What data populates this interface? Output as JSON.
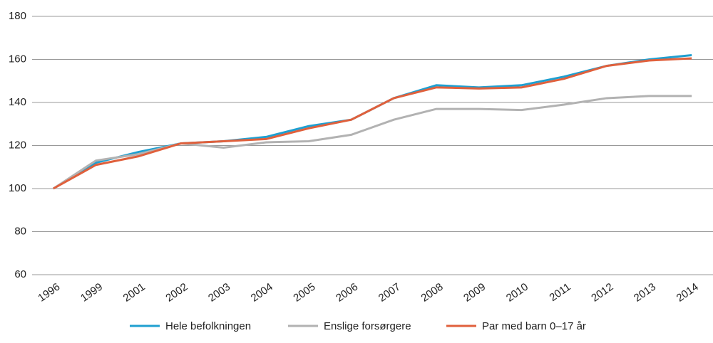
{
  "chart_data": {
    "type": "line",
    "categories": [
      "1996",
      "1999",
      "2001",
      "2002",
      "2003",
      "2004",
      "2005",
      "2006",
      "2007",
      "2008",
      "2009",
      "2010",
      "2011",
      "2012",
      "2013",
      "2014"
    ],
    "series": [
      {
        "name": "Hele befolkningen",
        "color": "#1f9fd0",
        "values": [
          100,
          112,
          117,
          121,
          122,
          124,
          129,
          132,
          142,
          148,
          147,
          148,
          152,
          157,
          160,
          162
        ]
      },
      {
        "name": "Enslige forsørgere",
        "color": "#b2b2b2",
        "values": [
          100,
          113,
          116,
          121,
          119,
          121.5,
          122,
          125,
          132,
          137,
          137,
          136.5,
          139,
          142,
          143,
          143
        ]
      },
      {
        "name": "Par med barn 0–17 år",
        "color": "#e0603c",
        "values": [
          100,
          111,
          115,
          121,
          122,
          123,
          128,
          132,
          142,
          147,
          146.5,
          147,
          151,
          157,
          159.5,
          160.5
        ]
      }
    ],
    "ylim": [
      60,
      180
    ],
    "yticks": [
      60,
      80,
      100,
      120,
      140,
      160,
      180
    ],
    "grid": true,
    "legend": "bottom"
  }
}
